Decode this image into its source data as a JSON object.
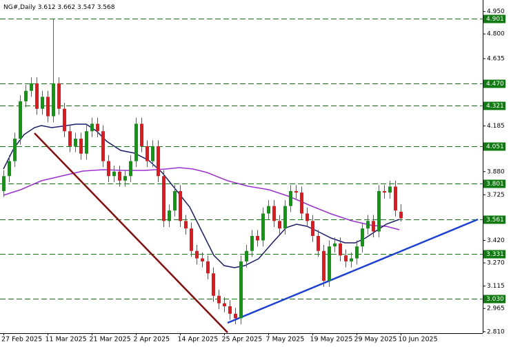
{
  "chart_data": {
    "type": "candlestick",
    "symbol": "NG#,Daily",
    "categories": [
      "27 Feb 2025",
      null,
      null,
      null,
      null,
      null,
      null,
      null,
      "11 Mar 2025",
      null,
      null,
      null,
      null,
      null,
      null,
      null,
      "21 Mar 2025",
      null,
      null,
      null,
      null,
      null,
      null,
      null,
      "2 Apr 2025",
      null,
      null,
      null,
      null,
      null,
      null,
      null,
      "14 Apr 2025",
      null,
      null,
      null,
      null,
      null,
      null,
      null,
      "25 Apr 2025",
      null,
      null,
      null,
      null,
      null,
      null,
      null,
      "7 May 2025",
      null,
      null,
      null,
      null,
      null,
      null,
      null,
      "19 May 2025",
      null,
      null,
      null,
      null,
      null,
      null,
      null,
      "29 May 2025",
      null,
      null,
      null,
      null,
      null,
      null,
      null,
      "10 Jun 2025"
    ],
    "open": [
      3.75,
      3.85,
      3.95,
      4.1,
      4.35,
      4.42,
      4.47,
      4.3,
      4.38,
      4.25,
      4.47,
      4.3,
      4.15,
      4.05,
      4.1,
      4.0,
      4.15,
      4.2,
      4.15,
      3.95,
      3.85,
      3.88,
      3.82,
      3.85,
      3.95,
      4.2,
      4.05,
      3.95,
      4.05,
      3.85,
      3.55,
      3.62,
      3.75,
      3.55,
      3.5,
      3.35,
      3.3,
      3.28,
      3.2,
      3.05,
      3.0,
      2.98,
      2.93,
      2.9,
      3.28,
      3.35,
      3.45,
      3.42,
      3.6,
      3.65,
      3.55,
      3.5,
      3.65,
      3.75,
      3.74,
      3.6,
      3.55,
      3.45,
      3.35,
      3.15,
      3.38,
      3.4,
      3.32,
      3.28,
      3.3,
      3.38,
      3.5,
      3.55,
      3.48,
      3.75,
      3.74,
      3.78,
      3.612
    ],
    "high": [
      3.89,
      3.99,
      4.14,
      4.39,
      4.46,
      4.51,
      4.51,
      4.42,
      4.42,
      4.9,
      4.51,
      4.34,
      4.19,
      4.14,
      4.14,
      4.19,
      4.24,
      4.24,
      4.19,
      3.99,
      3.92,
      3.92,
      3.89,
      3.99,
      4.24,
      4.24,
      4.09,
      4.09,
      4.09,
      3.89,
      3.66,
      3.79,
      3.79,
      3.59,
      3.54,
      3.39,
      3.34,
      3.32,
      3.24,
      3.09,
      3.04,
      3.02,
      2.97,
      3.32,
      3.39,
      3.49,
      3.49,
      3.64,
      3.69,
      3.69,
      3.59,
      3.69,
      3.79,
      3.79,
      3.78,
      3.64,
      3.59,
      3.49,
      3.39,
      3.42,
      3.44,
      3.44,
      3.36,
      3.34,
      3.42,
      3.54,
      3.59,
      3.59,
      3.79,
      3.79,
      3.82,
      3.82,
      3.662
    ],
    "low": [
      3.71,
      3.81,
      3.91,
      4.06,
      4.31,
      4.38,
      4.26,
      4.26,
      4.21,
      4.21,
      4.26,
      4.11,
      4.01,
      4.01,
      3.96,
      3.96,
      4.11,
      4.11,
      3.91,
      3.81,
      3.81,
      3.78,
      3.78,
      3.81,
      3.91,
      4.01,
      3.91,
      3.91,
      3.81,
      3.51,
      3.51,
      3.58,
      3.51,
      3.46,
      3.31,
      3.26,
      3.24,
      3.16,
      3.01,
      2.96,
      2.94,
      2.89,
      2.86,
      2.86,
      3.24,
      3.31,
      3.38,
      3.38,
      3.56,
      3.51,
      3.46,
      3.46,
      3.61,
      3.7,
      3.56,
      3.51,
      3.41,
      3.31,
      3.11,
      3.11,
      3.34,
      3.28,
      3.24,
      3.24,
      3.26,
      3.34,
      3.46,
      3.44,
      3.44,
      3.7,
      3.7,
      3.58,
      3.547
    ],
    "close": [
      3.85,
      3.95,
      4.1,
      4.35,
      4.42,
      4.47,
      4.3,
      4.38,
      4.25,
      4.47,
      4.3,
      4.15,
      4.05,
      4.1,
      4.0,
      4.15,
      4.2,
      4.15,
      3.95,
      3.85,
      3.88,
      3.82,
      3.85,
      3.95,
      4.2,
      4.05,
      3.95,
      4.05,
      3.85,
      3.55,
      3.62,
      3.75,
      3.55,
      3.5,
      3.35,
      3.3,
      3.28,
      3.2,
      3.05,
      3.0,
      2.98,
      2.93,
      2.9,
      3.28,
      3.35,
      3.45,
      3.42,
      3.6,
      3.65,
      3.55,
      3.5,
      3.65,
      3.75,
      3.74,
      3.6,
      3.55,
      3.45,
      3.35,
      3.15,
      3.38,
      3.4,
      3.32,
      3.28,
      3.3,
      3.38,
      3.5,
      3.55,
      3.48,
      3.75,
      3.74,
      3.78,
      3.62,
      3.568
    ],
    "up_color": "#0b9a0b",
    "down_color": "#e8161b",
    "level_color": "#0f7a0f",
    "ylim": [
      2.8,
      5.027
    ],
    "yticks": [
      {
        "value": 4.95,
        "label": "4.950"
      },
      {
        "value": 4.8,
        "label": "4.800"
      },
      4.635,
      4.185,
      {
        "value": 3.88,
        "label": "3.880"
      },
      3.725,
      {
        "value": 3.42,
        "label": "3.420"
      },
      {
        "value": 3.27,
        "label": "3.270"
      },
      3.115,
      2.965,
      {
        "value": 2.81,
        "label": "2.810"
      }
    ],
    "levels": [
      4.901,
      {
        "value": 4.47,
        "label": "4.470"
      },
      4.321,
      4.051,
      3.801,
      3.561,
      3.331,
      {
        "value": 3.03,
        "label": "3.030"
      }
    ]
  }
}
